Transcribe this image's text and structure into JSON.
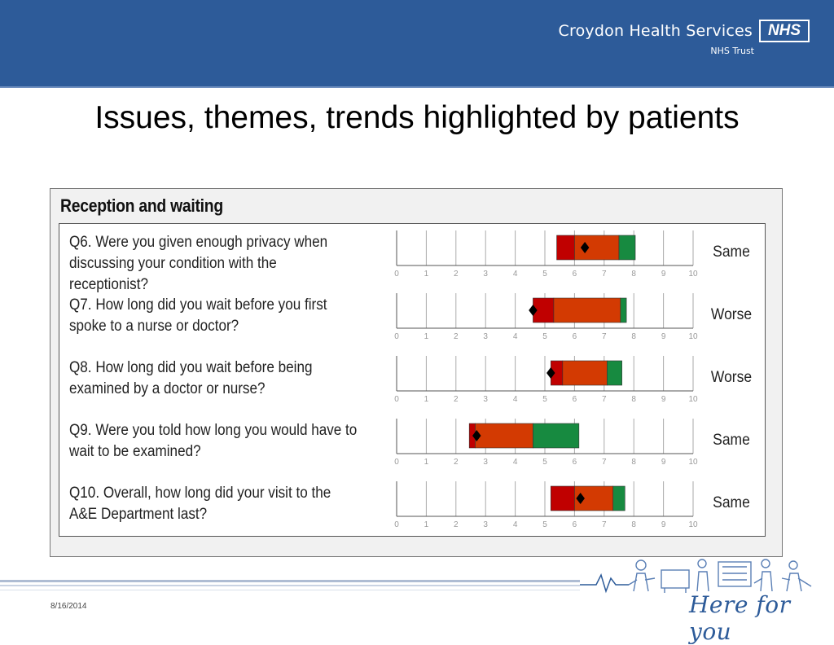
{
  "header": {
    "org_name": "Croydon Health Services",
    "nhs_logo": "NHS",
    "org_sub": "NHS Trust"
  },
  "title": "Issues, themes, trends highlighted by patients",
  "panel_title": "Reception and waiting",
  "chart_data": {
    "type": "bar",
    "title": "Reception and waiting",
    "xlim": [
      0,
      10
    ],
    "ticks": [
      "0",
      "1",
      "2",
      "3",
      "4",
      "5",
      "6",
      "7",
      "8",
      "9",
      "10"
    ],
    "colors": {
      "red": "#c00000",
      "orange": "#d33a02",
      "green": "#178a40",
      "marker": "#000000"
    },
    "rows": [
      {
        "question": "Q6. Were you given enough privacy when discussing your condition with the receptionist?",
        "red": [
          5.4,
          6.0
        ],
        "orange": [
          6.0,
          7.5
        ],
        "green": [
          7.5,
          8.05
        ],
        "score": 6.35,
        "result": "Same"
      },
      {
        "question": "Q7. How long did you wait before you first spoke to a nurse or doctor?",
        "red": [
          4.6,
          5.3
        ],
        "orange": [
          5.3,
          7.55
        ],
        "green": [
          7.55,
          7.75
        ],
        "score": 4.6,
        "result": "Worse"
      },
      {
        "question": "Q8. How long did you wait before being examined by a doctor or nurse?",
        "red": [
          5.2,
          5.6
        ],
        "orange": [
          5.6,
          7.1
        ],
        "green": [
          7.1,
          7.6
        ],
        "score": 5.2,
        "result": "Worse"
      },
      {
        "question": "Q9. Were you told how long you would have to wait to be examined?",
        "red": [
          2.45,
          2.65
        ],
        "orange": [
          2.65,
          4.6
        ],
        "green": [
          4.6,
          6.15
        ],
        "score": 2.7,
        "result": "Same"
      },
      {
        "question": "Q10. Overall, how long did your visit to the A&E Department last?",
        "red": [
          5.2,
          6.0
        ],
        "orange": [
          6.0,
          7.3
        ],
        "green": [
          7.3,
          7.7
        ],
        "score": 6.2,
        "result": "Same"
      }
    ]
  },
  "footer": {
    "date": "8/16/2014",
    "tagline": "Here for you"
  }
}
